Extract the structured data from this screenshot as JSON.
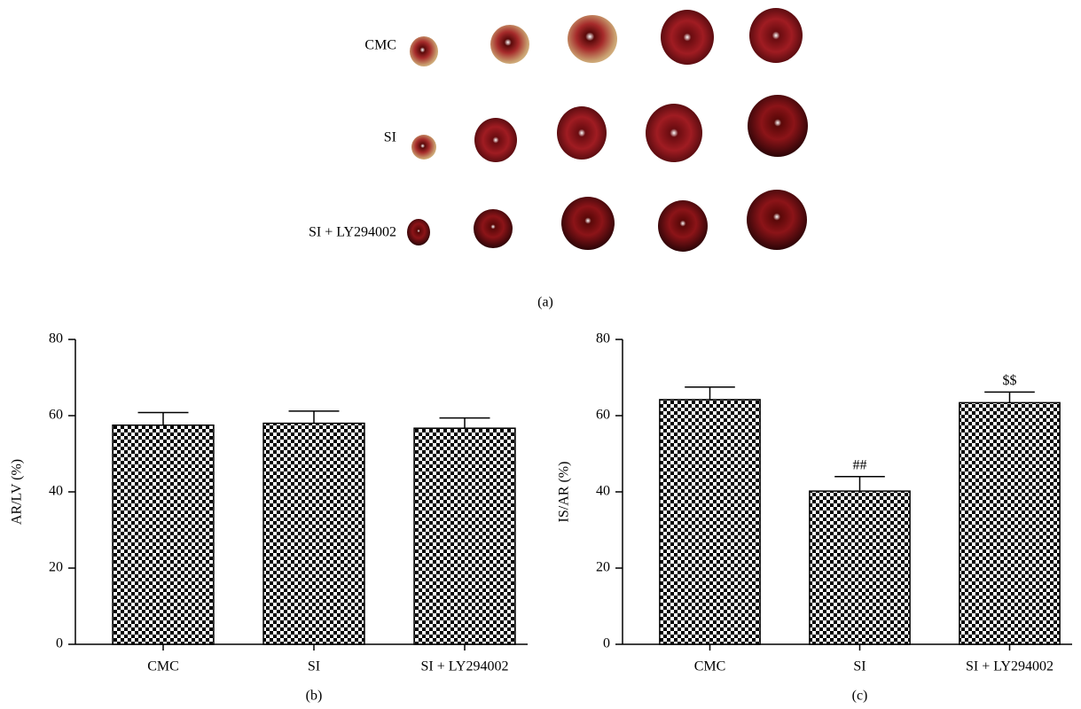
{
  "figure": {
    "rows": [
      "CMC",
      "SI",
      "SI + LY294002"
    ],
    "label": "(a)"
  },
  "chart_data": [
    {
      "type": "bar",
      "label": "(b)",
      "ylabel": "AR/LV (%)",
      "categories": [
        "CMC",
        "SI",
        "SI + LY294002"
      ],
      "values": [
        57.5,
        58,
        56.7
      ],
      "errors": [
        3.3,
        3.2,
        2.7
      ],
      "annotations": [
        null,
        null,
        null
      ],
      "ylim": [
        0,
        80
      ],
      "yticks": [
        0,
        20,
        40,
        60,
        80
      ],
      "color": "#000000"
    },
    {
      "type": "bar",
      "label": "(c)",
      "ylabel": "IS/AR (%)",
      "categories": [
        "CMC",
        "SI",
        "SI + LY294002"
      ],
      "values": [
        64.2,
        40.2,
        63.4
      ],
      "errors": [
        3.3,
        3.8,
        2.8
      ],
      "annotations": [
        null,
        "##",
        "$$"
      ],
      "ylim": [
        0,
        80
      ],
      "yticks": [
        0,
        20,
        40,
        60,
        80
      ],
      "color": "#000000"
    }
  ]
}
